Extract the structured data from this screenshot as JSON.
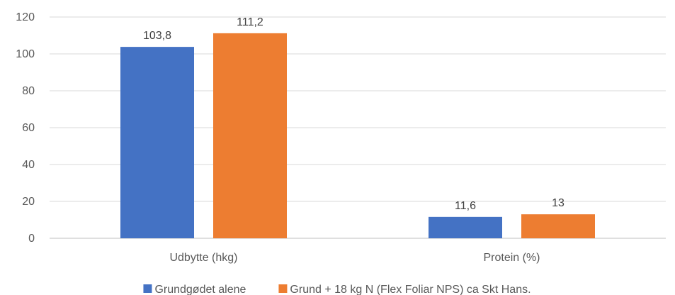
{
  "chart_data": {
    "type": "bar",
    "categories": [
      "Udbytte (hkg)",
      "Protein (%)"
    ],
    "series": [
      {
        "name": "Grundgødet alene",
        "values": [
          103.8,
          11.6
        ],
        "labels": [
          "103,8",
          "11,6"
        ],
        "color": "#4472c4"
      },
      {
        "name": "Grund + 18 kg N (Flex Foliar NPS) ca Skt Hans.",
        "values": [
          111.2,
          13
        ],
        "labels": [
          "111,2",
          "13"
        ],
        "color": "#ed7d31"
      }
    ],
    "ylim": [
      0,
      120
    ],
    "yticks": [
      0,
      20,
      40,
      60,
      80,
      100,
      120
    ],
    "grid": true,
    "legend_position": "bottom",
    "title": "",
    "xlabel": "",
    "ylabel": ""
  }
}
